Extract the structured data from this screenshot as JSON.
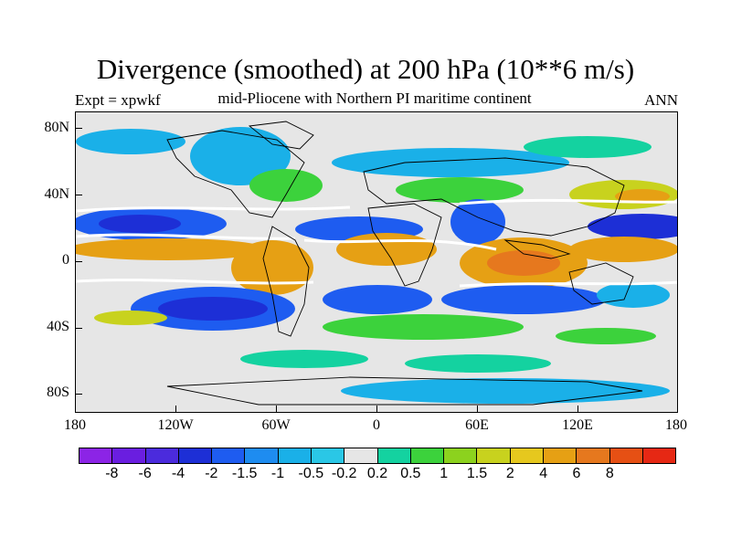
{
  "title": "Divergence (smoothed) at 200 hPa (10**6 m/s)",
  "subtitle_left": "Expt = xpwkf",
  "subtitle_center": "mid-Pliocene with Northern PI maritime continent",
  "subtitle_right": "ANN",
  "lat_labels": [
    "80N",
    "40N",
    "0",
    "40S",
    "80S"
  ],
  "lon_labels": [
    "180",
    "120W",
    "60W",
    "0",
    "60E",
    "120E",
    "180"
  ],
  "colorbar": {
    "colors": [
      "#8c24e6",
      "#6a1ee0",
      "#4b2bdd",
      "#1d2fd6",
      "#1e5cf0",
      "#1e8cf0",
      "#1ab0e8",
      "#2ac7e6",
      "#e6e6e6",
      "#14d2a0",
      "#3cd23c",
      "#8cd21e",
      "#c8d21e",
      "#e6c81e",
      "#e6a014",
      "#e6781e",
      "#e65014",
      "#e62814"
    ],
    "labels": [
      "-8",
      "-6",
      "-4",
      "-2",
      "-1.5",
      "-1",
      "-0.5",
      "-0.2",
      "0.2",
      "0.5",
      "1",
      "1.5",
      "2",
      "4",
      "6",
      "8"
    ]
  },
  "colors": {
    "neutral": "#e6e6e6",
    "cyan": "#1ab0e8",
    "blue": "#1e5cf0",
    "darkblue": "#1d2fd6",
    "green": "#3cd23c",
    "teal": "#14d2a0",
    "yellow": "#c8d21e",
    "orange": "#e6a014",
    "darkorange": "#e6781e",
    "white": "#ffffff"
  }
}
